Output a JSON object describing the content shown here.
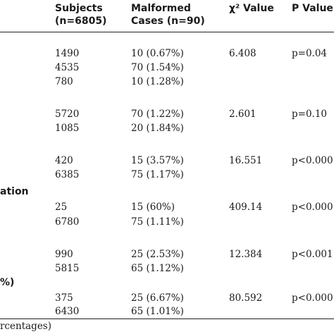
{
  "header": {
    "subjects": "Subjects",
    "subjects_n": "(n=6805)",
    "malformed": "Malformed",
    "malformed_n": "Cases (n=90)",
    "chi": "χ² Value",
    "pvalue": "P Value"
  },
  "group_labels": {
    "g4": "ation",
    "g6": "%)"
  },
  "groups": [
    {
      "chi": "6.408",
      "p": "p=0.04",
      "rows": [
        {
          "subjects": "1490",
          "malformed": "10 (0.67%)"
        },
        {
          "subjects": "4535",
          "malformed": "70 (1.54%)"
        },
        {
          "subjects": "780",
          "malformed": "10 (1.28%)"
        }
      ]
    },
    {
      "chi": "2.601",
      "p": "p=0.10",
      "rows": [
        {
          "subjects": "5720",
          "malformed": "70 (1.22%)"
        },
        {
          "subjects": "1085",
          "malformed": "20 (1.84%)"
        }
      ]
    },
    {
      "chi": "16.551",
      "p": "p<0.000",
      "rows": [
        {
          "subjects": "420",
          "malformed": "15 (3.57%)"
        },
        {
          "subjects": "6385",
          "malformed": "75 (1.17%)"
        }
      ]
    },
    {
      "chi": "409.14",
      "p": "p<0.000",
      "rows": [
        {
          "subjects": "25",
          "malformed": "15 (60%)"
        },
        {
          "subjects": "6780",
          "malformed": "75 (1.11%)"
        }
      ]
    },
    {
      "chi": "12.384",
      "p": "p<0.001",
      "rows": [
        {
          "subjects": "990",
          "malformed": "25 (2.53%)"
        },
        {
          "subjects": "5815",
          "malformed": "65 (1.12%)"
        }
      ]
    },
    {
      "chi": "80.592",
      "p": "p<0.000",
      "rows": [
        {
          "subjects": "375",
          "malformed": "25 (6.67%)"
        },
        {
          "subjects": "6430",
          "malformed": "65 (1.01%)"
        }
      ]
    }
  ],
  "footnote": "rcentages)"
}
